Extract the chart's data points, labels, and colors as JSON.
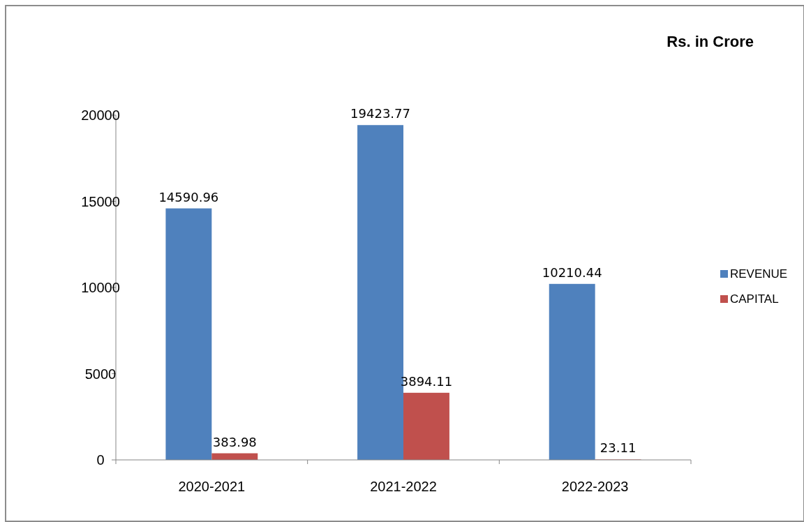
{
  "chart_data": {
    "type": "bar",
    "annotations": [
      "Rs. in Crore"
    ],
    "categories": [
      "2020-2021",
      "2021-2022",
      "2022-2023"
    ],
    "series": [
      {
        "name": "REVENUE",
        "color": "#4f81bd",
        "values": [
          14590.96,
          19423.77,
          10210.44
        ]
      },
      {
        "name": "CAPITAL",
        "color": "#c0504d",
        "values": [
          383.98,
          3894.11,
          23.11
        ]
      }
    ],
    "ylim": [
      0,
      20000
    ],
    "yticks": [
      0,
      5000,
      10000,
      15000,
      20000
    ],
    "grid": false,
    "legend": "right",
    "data_labels": true
  }
}
